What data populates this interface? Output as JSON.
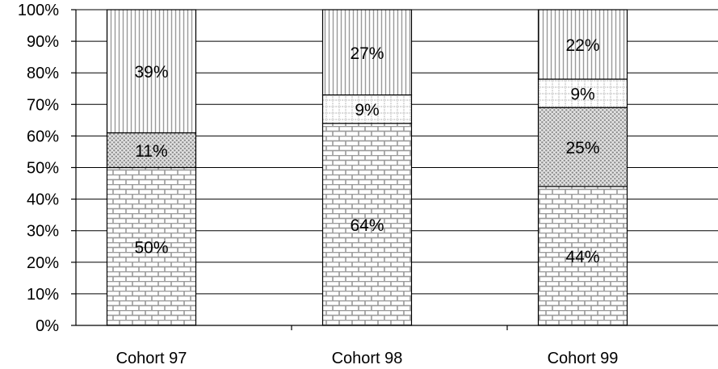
{
  "chart_data": {
    "type": "bar",
    "stacked": true,
    "categories": [
      "Cohort 97",
      "Cohort 98",
      "Cohort 99"
    ],
    "series": [
      {
        "values": [
          50,
          64,
          44
        ],
        "pattern": "brick"
      },
      {
        "values": [
          11,
          0,
          25
        ],
        "pattern": "dots"
      },
      {
        "values": [
          0,
          9,
          9
        ],
        "pattern": "dotted-grid"
      },
      {
        "values": [
          39,
          27,
          22
        ],
        "pattern": "vertical-lines"
      }
    ],
    "segment_labels": [
      [
        "50%",
        "11%",
        "",
        "39%"
      ],
      [
        "64%",
        "",
        "9%",
        "27%"
      ],
      [
        "44%",
        "25%",
        "9%",
        "22%"
      ]
    ],
    "yticks": [
      "0%",
      "10%",
      "20%",
      "30%",
      "40%",
      "50%",
      "60%",
      "70%",
      "80%",
      "90%",
      "100%"
    ],
    "ylim": [
      0,
      100
    ],
    "grid": true,
    "legend": "none",
    "colors": {
      "pattern_ink": "#999999",
      "axis": "#000000",
      "background": "#ffffff"
    }
  }
}
